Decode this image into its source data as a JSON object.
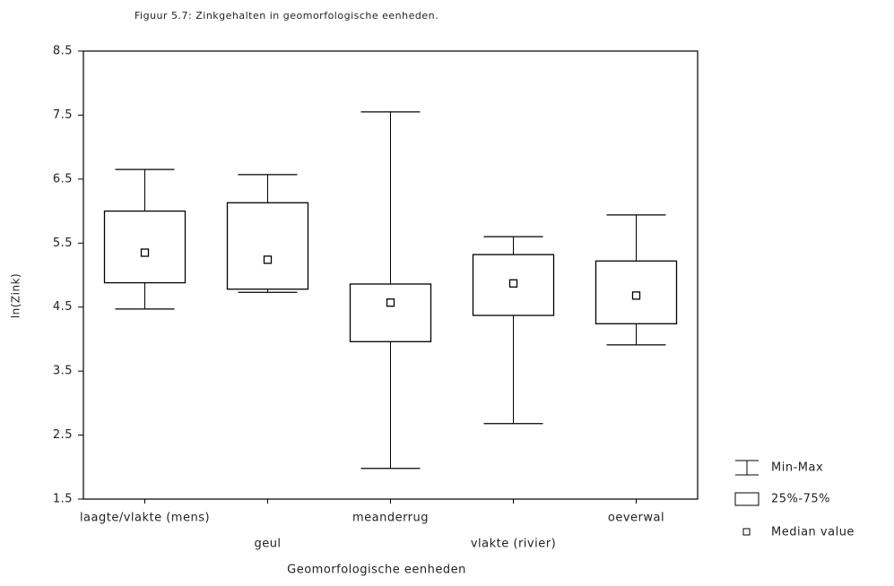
{
  "chart_data": {
    "type": "box",
    "title": "Figuur 5.7: Zinkgehalten in geomorfologische eenheden.",
    "x_label": "Geomorfologische eenheden",
    "y_label": "ln(Zink)",
    "categories": [
      "laagte/vlakte (mens)",
      "geul",
      "meanderrug",
      "vlakte (rivier)",
      "oeverwal"
    ],
    "min": [
      4.47,
      4.73,
      1.98,
      2.68,
      3.91
    ],
    "q1": [
      4.88,
      4.78,
      3.96,
      4.37,
      4.24
    ],
    "median": [
      5.35,
      5.24,
      4.57,
      4.87,
      4.68
    ],
    "q3": [
      6.0,
      6.13,
      4.86,
      5.32,
      5.22
    ],
    "max": [
      6.65,
      6.57,
      7.55,
      5.6,
      5.94
    ],
    "ylim": [
      1.5,
      8.5
    ],
    "yticks": [
      1.5,
      2.5,
      3.5,
      4.5,
      5.5,
      6.5,
      7.5,
      8.5
    ],
    "grid": false,
    "color": "#000000",
    "legend": {
      "min_max": "Min-Max",
      "box": "25%-75%",
      "median": "Median value"
    },
    "legend_position": "right"
  }
}
